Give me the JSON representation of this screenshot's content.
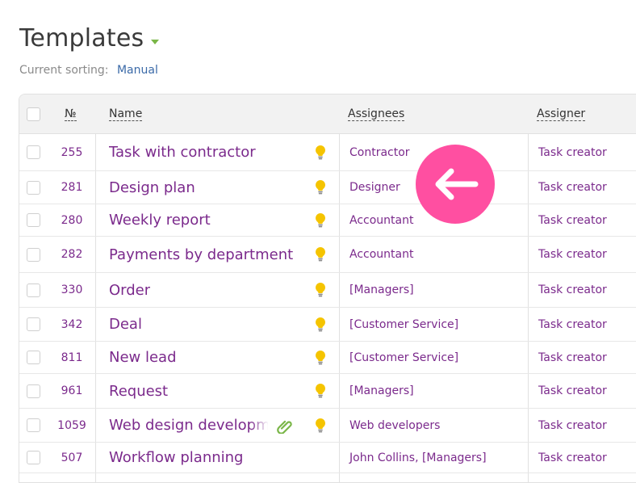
{
  "header": {
    "title": "Templates",
    "sorting_label": "Current sorting:",
    "sorting_value": "Manual"
  },
  "table": {
    "columns": {
      "number": "№",
      "name": "Name",
      "assignees": "Assignees",
      "assigner": "Assigner"
    },
    "rows": [
      {
        "number": "255",
        "name": "Task with contractor",
        "assignees": "Contractor",
        "assigner": "Task creator",
        "attachment": false
      },
      {
        "number": "281",
        "name": "Design plan",
        "assignees": "Designer",
        "assigner": "Task creator",
        "attachment": false
      },
      {
        "number": "280",
        "name": "Weekly report",
        "assignees": "Accountant",
        "assigner": "Task creator",
        "attachment": false
      },
      {
        "number": "282",
        "name": "Payments by department",
        "assignees": "Accountant",
        "assigner": "Task creator",
        "attachment": false
      },
      {
        "number": "330",
        "name": "Order",
        "assignees": "[Managers]",
        "assigner": "Task creator",
        "attachment": false
      },
      {
        "number": "342",
        "name": "Deal",
        "assignees": "[Customer Service]",
        "assigner": "Task creator",
        "attachment": false
      },
      {
        "number": "811",
        "name": "New lead",
        "assignees": "[Customer Service]",
        "assigner": "Task creator",
        "attachment": false
      },
      {
        "number": "961",
        "name": "Request",
        "assignees": "[Managers]",
        "assigner": "Task creator",
        "attachment": false
      },
      {
        "number": "1059",
        "name": "Web design development",
        "assignees": "Web developers",
        "assigner": "Task creator",
        "attachment": true
      },
      {
        "number": "507",
        "name": "Workflow planning",
        "assignees": "John Collins, [Managers]",
        "assigner": "Task creator",
        "attachment": false
      }
    ]
  },
  "icons": {
    "title_dropdown": "chevron-down-icon",
    "template_bulb": "lightbulb-icon",
    "attachment": "paperclip-icon",
    "back": "arrow-left-icon"
  },
  "colors": {
    "link": "#7b2a8c",
    "sort_link": "#3b6aa8",
    "bulb": "#f5c400",
    "clip": "#7ab648",
    "back_button": "#ff4fa1",
    "header_bg": "#f2f2f2"
  }
}
